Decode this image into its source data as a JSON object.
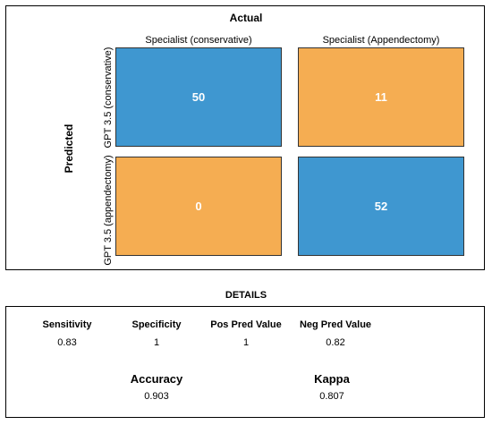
{
  "chart_data": {
    "type": "heatmap",
    "title": "Actual",
    "row_axis_label": "Predicted",
    "columns": [
      "Specialist (conservative)",
      "Specialist (Appendectomy)"
    ],
    "rows": [
      "GPT 3.5 (conservative)",
      "GPT 3.5 (appendectomy)"
    ],
    "values": [
      [
        50,
        11
      ],
      [
        0,
        52
      ]
    ],
    "cell_colors": [
      [
        "#3f97d0",
        "#f5ad52"
      ],
      [
        "#f5ad52",
        "#3f97d0"
      ]
    ]
  },
  "details": {
    "title": "DETAILS",
    "metrics": [
      {
        "name": "Sensitivity",
        "value": "0.83"
      },
      {
        "name": "Specificity",
        "value": "1"
      },
      {
        "name": "Pos Pred Value",
        "value": "1"
      },
      {
        "name": "Neg Pred Value",
        "value": "0.82"
      }
    ],
    "accuracy": {
      "name": "Accuracy",
      "value": "0.903"
    },
    "kappa": {
      "name": "Kappa",
      "value": "0.807"
    }
  }
}
